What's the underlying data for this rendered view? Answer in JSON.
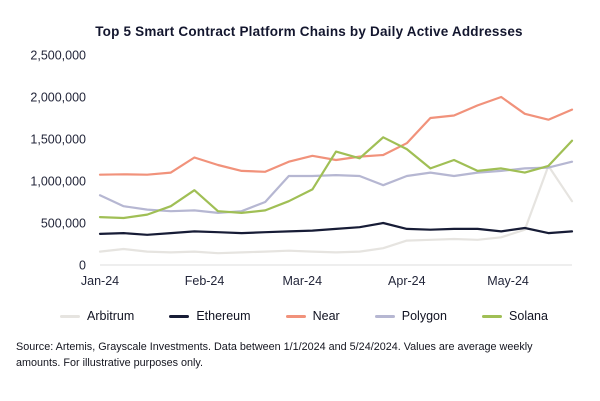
{
  "source_note": "Source: Artemis, Grayscale Investments. Data between 1/1/2024 and 5/24/2024. Values are average weekly amounts. For illustrative purposes only.",
  "chart_data": {
    "type": "line",
    "title": "Top 5 Smart Contract Platform Chains by Daily Active Addresses",
    "xlabel": "",
    "ylabel": "",
    "ylim": [
      0,
      2500000
    ],
    "grid": false,
    "legend_position": "bottom",
    "x_tick_labels": [
      "Jan-24",
      "Feb-24",
      "Mar-24",
      "Apr-24",
      "May-24"
    ],
    "x_tick_positions": [
      0,
      4.43,
      8.57,
      13,
      17.29
    ],
    "y_ticks": [
      0,
      500000,
      1000000,
      1500000,
      2000000,
      2500000
    ],
    "y_tick_labels": [
      "0",
      "500,000",
      "1,000,000",
      "1,500,000",
      "2,000,000",
      "2,500,000"
    ],
    "series": [
      {
        "name": "Arbitrum",
        "color": "#e6e4e0",
        "values": [
          160000,
          190000,
          160000,
          150000,
          160000,
          140000,
          150000,
          160000,
          170000,
          160000,
          150000,
          160000,
          200000,
          290000,
          300000,
          310000,
          300000,
          330000,
          420000,
          1180000,
          760000
        ]
      },
      {
        "name": "Ethereum",
        "color": "#171c36",
        "values": [
          370000,
          380000,
          360000,
          380000,
          400000,
          390000,
          380000,
          390000,
          400000,
          410000,
          430000,
          450000,
          500000,
          430000,
          420000,
          430000,
          430000,
          400000,
          440000,
          380000,
          400000
        ]
      },
      {
        "name": "Near",
        "color": "#f1927b",
        "values": [
          1075000,
          1080000,
          1075000,
          1100000,
          1280000,
          1190000,
          1120000,
          1110000,
          1230000,
          1300000,
          1250000,
          1290000,
          1310000,
          1450000,
          1750000,
          1780000,
          1900000,
          2000000,
          1800000,
          1730000,
          1850000
        ]
      },
      {
        "name": "Polygon",
        "color": "#b6b7d2",
        "values": [
          830000,
          700000,
          660000,
          640000,
          650000,
          620000,
          640000,
          750000,
          1060000,
          1060000,
          1070000,
          1060000,
          950000,
          1060000,
          1100000,
          1060000,
          1100000,
          1120000,
          1150000,
          1160000,
          1230000
        ]
      },
      {
        "name": "Solana",
        "color": "#a0bf55",
        "values": [
          570000,
          560000,
          600000,
          700000,
          890000,
          640000,
          620000,
          650000,
          760000,
          900000,
          1350000,
          1270000,
          1520000,
          1380000,
          1150000,
          1250000,
          1120000,
          1150000,
          1100000,
          1180000,
          1480000
        ]
      }
    ]
  }
}
